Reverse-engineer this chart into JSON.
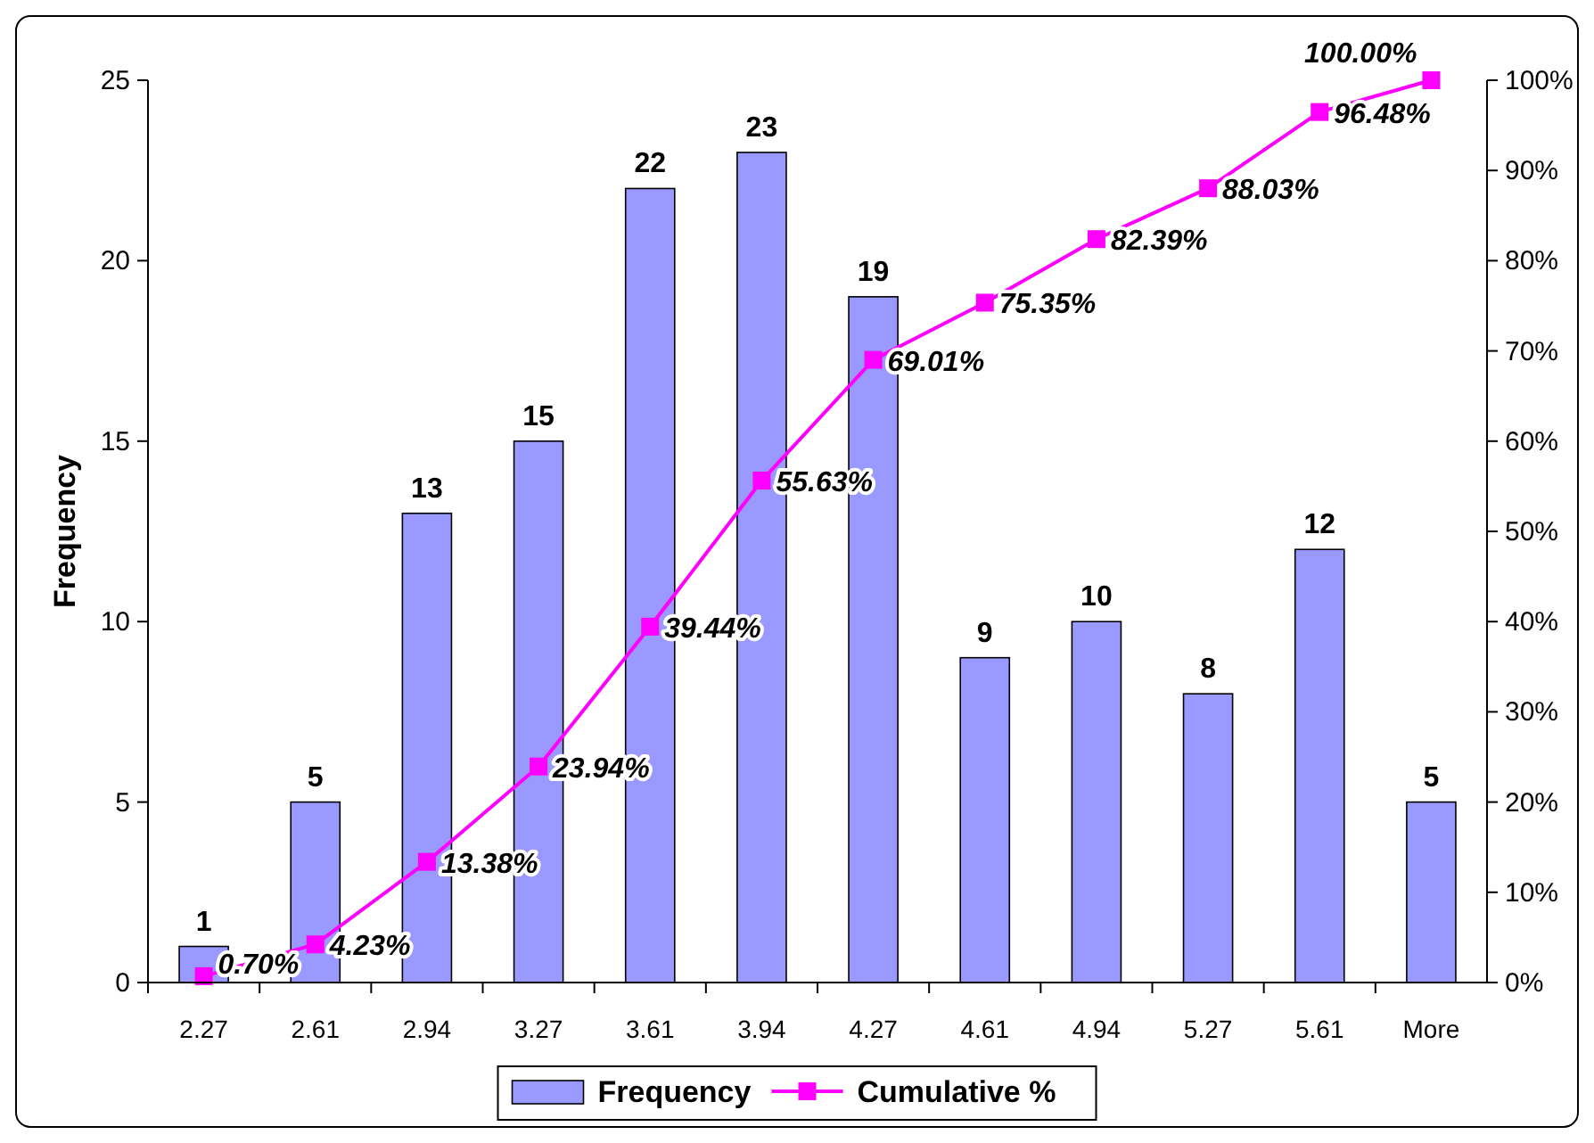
{
  "chart_data": {
    "type": "bar",
    "categories": [
      "2.27",
      "2.61",
      "2.94",
      "3.27",
      "3.61",
      "3.94",
      "4.27",
      "4.61",
      "4.94",
      "5.27",
      "5.61",
      "More"
    ],
    "ylabel": "Frequency",
    "ylim": [
      0,
      25
    ],
    "yticks": [
      0,
      5,
      10,
      15,
      20,
      25
    ],
    "y2lim": [
      0,
      100
    ],
    "y2ticks": [
      {
        "value": 0,
        "label": "0%"
      },
      {
        "value": 10,
        "label": "10%"
      },
      {
        "value": 20,
        "label": "20%"
      },
      {
        "value": 30,
        "label": "30%"
      },
      {
        "value": 40,
        "label": "40%"
      },
      {
        "value": 50,
        "label": "50%"
      },
      {
        "value": 60,
        "label": "60%"
      },
      {
        "value": 70,
        "label": "70%"
      },
      {
        "value": 80,
        "label": "80%"
      },
      {
        "value": 90,
        "label": "90%"
      },
      {
        "value": 100,
        "label": "100%"
      }
    ],
    "legend": "bottom",
    "marker": "square",
    "grid": false,
    "series": [
      {
        "name": "Frequency",
        "color": "#9999ff",
        "values": [
          1,
          5,
          13,
          15,
          22,
          23,
          19,
          9,
          10,
          8,
          12,
          5
        ],
        "value_labels": [
          "1",
          "5",
          "13",
          "15",
          "22",
          "23",
          "19",
          "9",
          "10",
          "8",
          "12",
          "5"
        ]
      },
      {
        "name": "Cumulative %",
        "type": "line",
        "axis": "y2",
        "color": "#ff00ff",
        "values": [
          0.7,
          4.23,
          13.38,
          23.94,
          39.44,
          55.63,
          69.01,
          75.35,
          82.39,
          88.03,
          96.48,
          100.0
        ],
        "value_labels": [
          "0.70%",
          "4.23%",
          "13.38%",
          "23.94%",
          "39.44%",
          "55.63%",
          "69.01%",
          "75.35%",
          "82.39%",
          "88.03%",
          "96.48%",
          "100.00%"
        ]
      }
    ]
  }
}
